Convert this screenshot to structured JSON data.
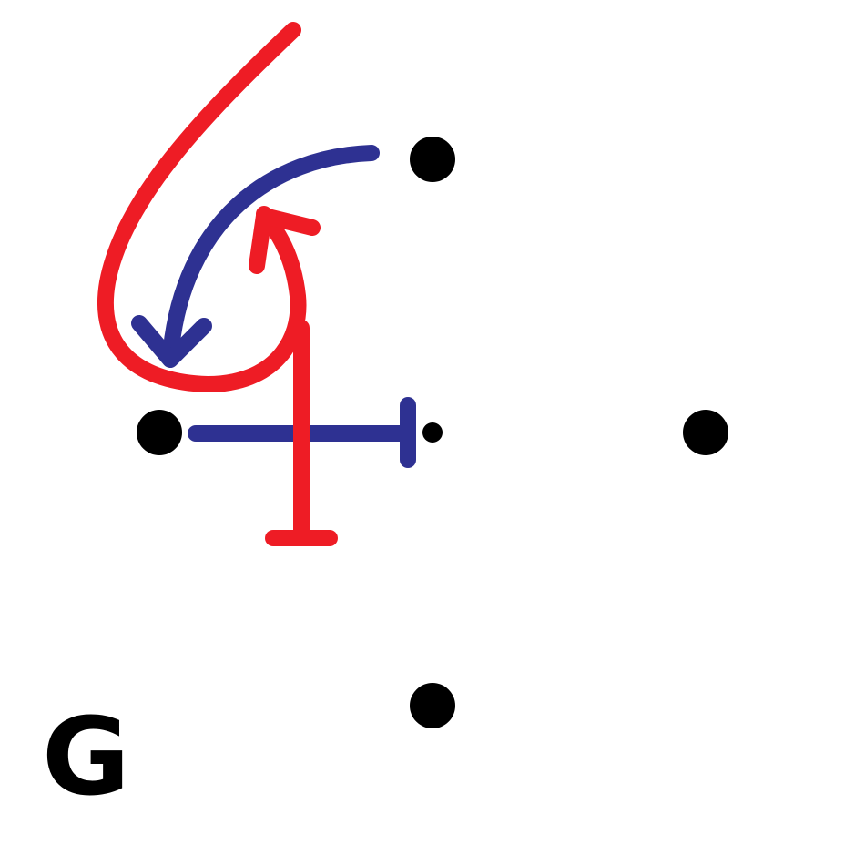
{
  "diagram": {
    "corner_label": "G",
    "colors": {
      "background": "#ffffff",
      "dot": "#000000",
      "red": "#ee1c25",
      "blue": "#2e3192"
    },
    "dots": [
      "dot-top",
      "dot-left",
      "dot-center",
      "dot-right",
      "dot-bottom"
    ],
    "strokes": [
      {
        "name": "red-loop-arrow",
        "color": "red",
        "end": "arrowhead"
      },
      {
        "name": "red-vertical-bar",
        "color": "red",
        "end": "t-bar"
      },
      {
        "name": "blue-curved-arrow",
        "color": "blue",
        "end": "arrowhead"
      },
      {
        "name": "blue-horizontal-bar",
        "color": "blue",
        "end": "t-bar"
      }
    ]
  }
}
